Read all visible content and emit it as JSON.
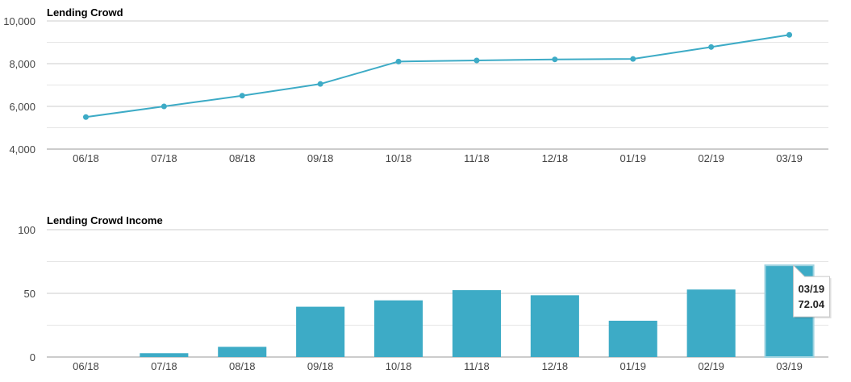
{
  "chart_data": [
    {
      "type": "line",
      "title": "Lending Crowd",
      "categories": [
        "06/18",
        "07/18",
        "08/18",
        "09/18",
        "10/18",
        "11/18",
        "12/18",
        "01/19",
        "02/19",
        "03/19"
      ],
      "series": [
        {
          "values": [
            5500,
            6000,
            6500,
            7050,
            8100,
            8150,
            8200,
            8220,
            8780,
            9350
          ]
        }
      ],
      "y_ticks": [
        "4,000",
        "6,000",
        "8,000",
        "10,000"
      ],
      "ylim": [
        4000,
        10000
      ],
      "grid": true,
      "color": "#3dabc6"
    },
    {
      "type": "bar",
      "title": "Lending Crowd Income",
      "categories": [
        "06/18",
        "07/18",
        "08/18",
        "09/18",
        "10/18",
        "11/18",
        "12/18",
        "01/19",
        "02/19",
        "03/19"
      ],
      "series": [
        {
          "values": [
            0,
            3,
            8,
            39.5,
            44.5,
            52.5,
            48.5,
            28.5,
            53,
            72.04
          ]
        }
      ],
      "y_ticks": [
        "0",
        "50",
        "100"
      ],
      "ylim": [
        0,
        100
      ],
      "grid": true,
      "color": "#3dabc6",
      "tooltip": {
        "category": "03/19",
        "value": "72.04"
      }
    }
  ]
}
